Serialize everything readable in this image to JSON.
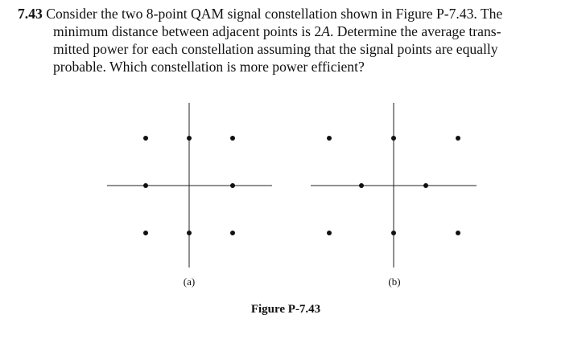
{
  "problem": {
    "number": "7.43",
    "line1": "Consider the two 8-point QAM signal constellation shown in Figure P-7.43. The",
    "line2_before": "minimum distance between adjacent points is 2",
    "line2_var": "A",
    "line2_after": ". Determine the average trans-",
    "line3": "mitted power for each constellation assuming that the signal points are equally",
    "line4": "probable. Which constellation is more power efficient?"
  },
  "figure": {
    "caption": "Figure P-7.43",
    "panels": [
      {
        "label": "(a)",
        "points": [
          [
            -1,
            1
          ],
          [
            0,
            1
          ],
          [
            1,
            1
          ],
          [
            -1,
            0
          ],
          [
            1,
            0
          ],
          [
            -1,
            -1
          ],
          [
            0,
            -1
          ],
          [
            1,
            -1
          ]
        ]
      },
      {
        "label": "(b)",
        "points": [
          [
            -2,
            1
          ],
          [
            0,
            1
          ],
          [
            2,
            1
          ],
          [
            -1,
            0
          ],
          [
            1,
            0
          ],
          [
            -2,
            -1
          ],
          [
            0,
            -1
          ],
          [
            2,
            -1
          ]
        ]
      }
    ]
  }
}
